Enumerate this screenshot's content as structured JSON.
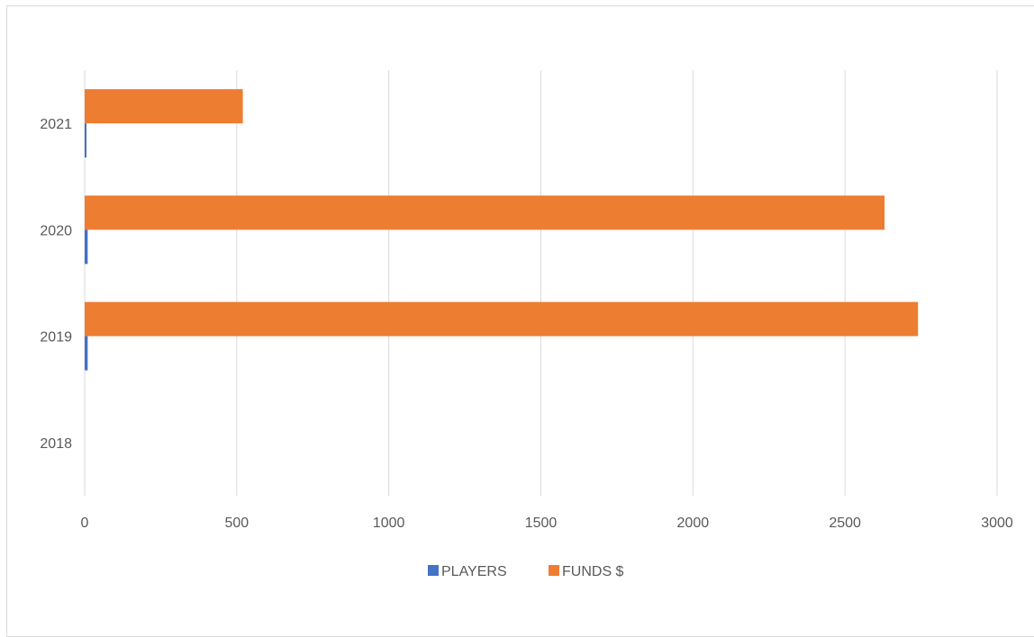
{
  "chart_data": {
    "type": "bar",
    "orientation": "horizontal",
    "categories": [
      "2018",
      "2019",
      "2020",
      "2021"
    ],
    "series": [
      {
        "name": "PLAYERS",
        "color": "#4472c4",
        "values": [
          0,
          10,
          10,
          5
        ]
      },
      {
        "name": "FUNDS $",
        "color": "#ed7d31",
        "values": [
          0,
          2740,
          2630,
          520
        ]
      }
    ],
    "xlim": [
      0,
      3000
    ],
    "x_ticks": [
      "0",
      "500",
      "1000",
      "1500",
      "2000",
      "2500",
      "3000"
    ],
    "grid": "vertical",
    "legend_position": "bottom"
  }
}
